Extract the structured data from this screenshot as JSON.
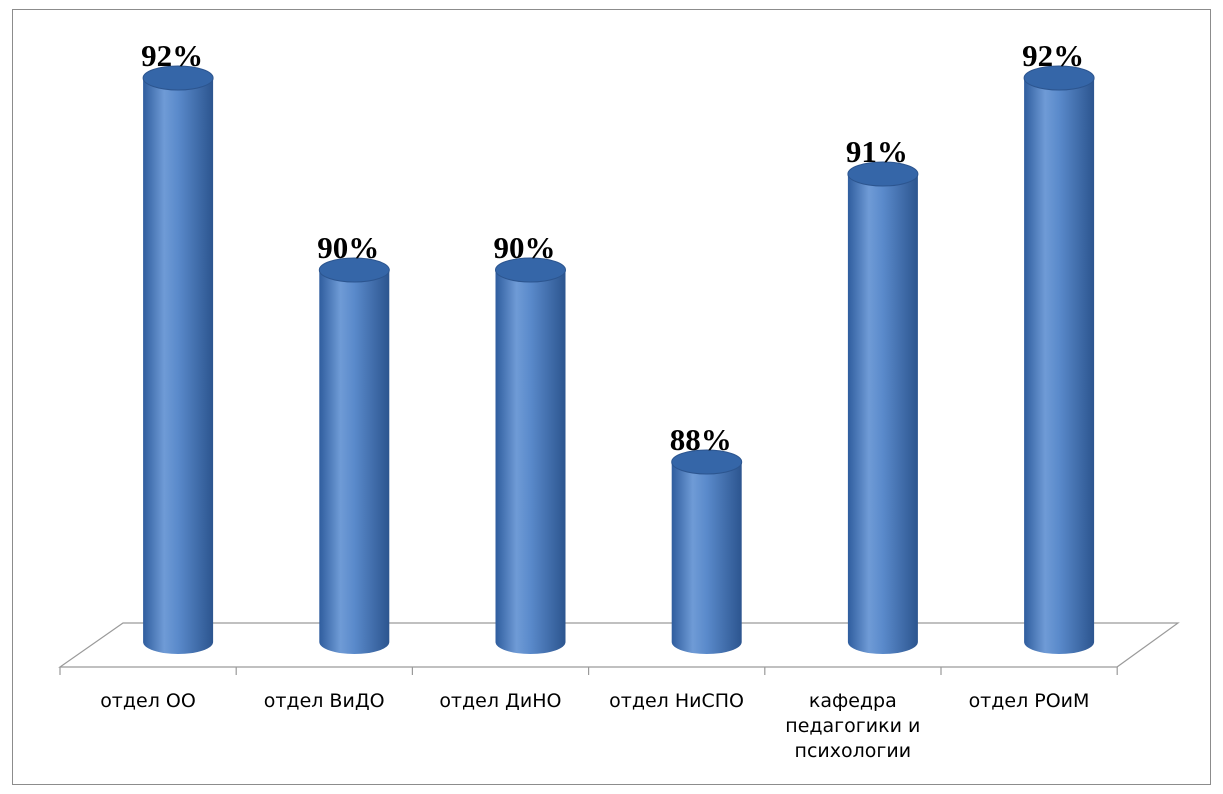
{
  "chart_data": {
    "type": "bar",
    "style": "3d-cylinder",
    "categories": [
      "отдел ОО",
      "отдел ВиДО",
      "отдел ДиНО",
      "отдел НиСПО",
      "кафедра педагогики и психологии",
      "отдел РОиМ"
    ],
    "category_lines": [
      [
        "отдел ОО"
      ],
      [
        "отдел ВиДО"
      ],
      [
        "отдел ДиНО"
      ],
      [
        "отдел НиСПО"
      ],
      [
        "кафедра",
        "педагогики и",
        "психологии"
      ],
      [
        "отдел РОиМ"
      ]
    ],
    "values": [
      92,
      90,
      90,
      88,
      91,
      92
    ],
    "data_labels": [
      "92%",
      "90%",
      "90%",
      "88%",
      "91%",
      "92%"
    ],
    "value_axis_visible": false,
    "grid": false,
    "legend": "none",
    "colors": {
      "bar_light": "#7fa6dc",
      "bar_mid": "#4a7cc0",
      "bar_dark": "#2c558f",
      "bar_top": "#3566a8",
      "floor_line": "#9a9a9a",
      "frame": "#8c8c8c",
      "label": "#000000"
    }
  }
}
